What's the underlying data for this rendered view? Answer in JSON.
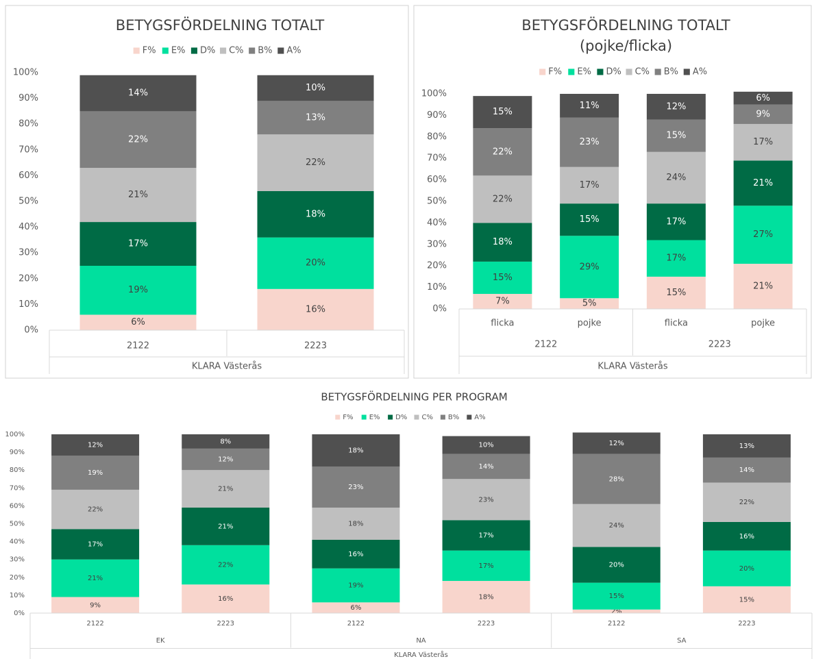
{
  "chart_data": [
    {
      "type": "bar",
      "stacked": true,
      "grid": false,
      "title": [
        "BETYGSFÖRDELNING TOTALT"
      ],
      "categories": [
        "2122",
        "2223"
      ],
      "x_label": "KLARA Västerås",
      "ylim": [
        0,
        100
      ],
      "yticks": [
        {
          "value": 0,
          "label": "0%"
        },
        {
          "value": 10,
          "label": "10%"
        },
        {
          "value": 20,
          "label": "20%"
        },
        {
          "value": 30,
          "label": "30%"
        },
        {
          "value": 40,
          "label": "40%"
        },
        {
          "value": 50,
          "label": "50%"
        },
        {
          "value": 60,
          "label": "60%"
        },
        {
          "value": 70,
          "label": "70%"
        },
        {
          "value": 80,
          "label": "80%"
        },
        {
          "value": 90,
          "label": "90%"
        },
        {
          "value": 100,
          "label": "100%"
        }
      ],
      "legend": "top",
      "series": [
        {
          "name": "F%",
          "color": "#f8d5cc",
          "values": [
            6,
            16
          ],
          "value_labels": [
            "6%",
            "16%"
          ]
        },
        {
          "name": "E%",
          "color": "#00e09e",
          "values": [
            19,
            20
          ],
          "value_labels": [
            "19%",
            "20%"
          ]
        },
        {
          "name": "D%",
          "color": "#006b45",
          "values": [
            17,
            18
          ],
          "value_labels": [
            "17%",
            "18%"
          ]
        },
        {
          "name": "C%",
          "color": "#bfbfbf",
          "values": [
            21,
            22
          ],
          "value_labels": [
            "21%",
            "22%"
          ]
        },
        {
          "name": "B%",
          "color": "#808080",
          "values": [
            22,
            13
          ],
          "value_labels": [
            "22%",
            "13%"
          ]
        },
        {
          "name": "A%",
          "color": "#505050",
          "values": [
            14,
            10
          ],
          "value_labels": [
            "14%",
            "10%"
          ]
        }
      ]
    },
    {
      "type": "bar",
      "stacked": true,
      "grid": false,
      "title": [
        "BETYGSFÖRDELNING TOTALT",
        "(pojke/flicka)"
      ],
      "categories": [
        "flicka",
        "pojke",
        "flicka",
        "pojke"
      ],
      "groups": [
        "2122",
        "2223"
      ],
      "x_label": "KLARA Västerås",
      "ylim": [
        0,
        100
      ],
      "yticks": [
        {
          "value": 0,
          "label": "0%"
        },
        {
          "value": 10,
          "label": "10%"
        },
        {
          "value": 20,
          "label": "20%"
        },
        {
          "value": 30,
          "label": "30%"
        },
        {
          "value": 40,
          "label": "40%"
        },
        {
          "value": 50,
          "label": "50%"
        },
        {
          "value": 60,
          "label": "60%"
        },
        {
          "value": 70,
          "label": "70%"
        },
        {
          "value": 80,
          "label": "80%"
        },
        {
          "value": 90,
          "label": "90%"
        },
        {
          "value": 100,
          "label": "100%"
        }
      ],
      "legend": "top",
      "series": [
        {
          "name": "F%",
          "color": "#f8d5cc",
          "values": [
            7,
            5,
            15,
            21
          ],
          "value_labels": [
            "7%",
            "5%",
            "15%",
            "21%"
          ]
        },
        {
          "name": "E%",
          "color": "#00e09e",
          "values": [
            15,
            29,
            17,
            27
          ],
          "value_labels": [
            "15%",
            "29%",
            "17%",
            "27%"
          ]
        },
        {
          "name": "D%",
          "color": "#006b45",
          "values": [
            18,
            15,
            17,
            21
          ],
          "value_labels": [
            "18%",
            "15%",
            "17%",
            "21%"
          ]
        },
        {
          "name": "C%",
          "color": "#bfbfbf",
          "values": [
            22,
            17,
            24,
            17
          ],
          "value_labels": [
            "22%",
            "17%",
            "24%",
            "17%"
          ]
        },
        {
          "name": "B%",
          "color": "#808080",
          "values": [
            22,
            23,
            15,
            9
          ],
          "value_labels": [
            "22%",
            "23%",
            "15%",
            "9%"
          ]
        },
        {
          "name": "A%",
          "color": "#505050",
          "values": [
            15,
            11,
            12,
            6
          ],
          "value_labels": [
            "15%",
            "11%",
            "12%",
            "6%"
          ]
        }
      ]
    },
    {
      "type": "bar",
      "stacked": true,
      "grid": false,
      "title": [
        "BETYGSFÖRDELNING PER PROGRAM"
      ],
      "categories": [
        "2122",
        "2223",
        "2122",
        "2223",
        "2122",
        "2223"
      ],
      "groups": [
        "EK",
        "NA",
        "SA"
      ],
      "x_label": "KLARA Västerås",
      "ylim": [
        0,
        100
      ],
      "yticks": [
        {
          "value": 0,
          "label": "0%"
        },
        {
          "value": 10,
          "label": "10%"
        },
        {
          "value": 20,
          "label": "20%"
        },
        {
          "value": 30,
          "label": "30%"
        },
        {
          "value": 40,
          "label": "40%"
        },
        {
          "value": 50,
          "label": "50%"
        },
        {
          "value": 60,
          "label": "60%"
        },
        {
          "value": 70,
          "label": "70%"
        },
        {
          "value": 80,
          "label": "80%"
        },
        {
          "value": 90,
          "label": "90%"
        },
        {
          "value": 100,
          "label": "100%"
        }
      ],
      "legend": "top",
      "series": [
        {
          "name": "F%",
          "color": "#f8d5cc",
          "values": [
            9,
            16,
            6,
            18,
            2,
            15
          ],
          "value_labels": [
            "9%",
            "16%",
            "6%",
            "18%",
            "2%",
            "15%"
          ]
        },
        {
          "name": "E%",
          "color": "#00e09e",
          "values": [
            21,
            22,
            19,
            17,
            15,
            20
          ],
          "value_labels": [
            "21%",
            "22%",
            "19%",
            "17%",
            "15%",
            "20%"
          ]
        },
        {
          "name": "D%",
          "color": "#006b45",
          "values": [
            17,
            21,
            16,
            17,
            20,
            16
          ],
          "value_labels": [
            "17%",
            "21%",
            "16%",
            "17%",
            "20%",
            "16%"
          ]
        },
        {
          "name": "C%",
          "color": "#bfbfbf",
          "values": [
            22,
            21,
            18,
            23,
            24,
            22
          ],
          "value_labels": [
            "22%",
            "21%",
            "18%",
            "23%",
            "24%",
            "22%"
          ]
        },
        {
          "name": "B%",
          "color": "#808080",
          "values": [
            19,
            12,
            23,
            14,
            28,
            14
          ],
          "value_labels": [
            "19%",
            "12%",
            "23%",
            "14%",
            "28%",
            "14%"
          ]
        },
        {
          "name": "A%",
          "color": "#505050",
          "values": [
            12,
            8,
            18,
            10,
            12,
            13
          ],
          "value_labels": [
            "12%",
            "8%",
            "18%",
            "10%",
            "12%",
            "13%"
          ]
        }
      ]
    }
  ]
}
